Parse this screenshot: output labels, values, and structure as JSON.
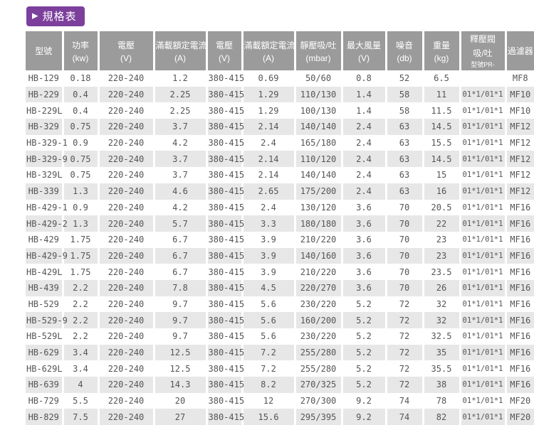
{
  "section_title": {
    "arrow_icon": "▶",
    "label": "規格表"
  },
  "colors": {
    "accent": "#7c3f9c",
    "header_bg": "#9b9b9b",
    "header_text": "#ffffff",
    "row_alt_bg": "#e7e7e7",
    "row_text": "#555555",
    "page_bg": "#ffffff"
  },
  "table": {
    "headers": [
      {
        "line1": "型號",
        "line2": "",
        "line3": ""
      },
      {
        "line1": "功率",
        "line2": "(kw)",
        "line3": ""
      },
      {
        "line1": "電壓",
        "line2": "(V)",
        "line3": ""
      },
      {
        "line1": "滿載額定電流",
        "line2": "(A)",
        "line3": ""
      },
      {
        "line1": "電壓",
        "line2": "(V)",
        "line3": ""
      },
      {
        "line1": "滿載額定電流",
        "line2": "(A)",
        "line3": ""
      },
      {
        "line1": "靜壓吸/吐",
        "line2": "(mbar)",
        "line3": ""
      },
      {
        "line1": "最大風量",
        "line2": "(V)",
        "line3": ""
      },
      {
        "line1": "噪音",
        "line2": "(db)",
        "line3": ""
      },
      {
        "line1": "重量",
        "line2": "(kg)",
        "line3": ""
      },
      {
        "line1": "釋壓閥",
        "line2": "吸/吐",
        "line3": "型號PR-"
      },
      {
        "line1": "過濾器",
        "line2": "",
        "line3": ""
      }
    ],
    "rows": [
      [
        "HB-129",
        "0.18",
        "220-240",
        "1.2",
        "380-415",
        "0.69",
        "50/60",
        "0.8",
        "52",
        "6.5",
        "",
        "MF8"
      ],
      [
        "HB-229",
        "0.4",
        "220-240",
        "2.25",
        "380-415",
        "1.29",
        "110/130",
        "1.4",
        "58",
        "11",
        "01*1/01*1",
        "MF10"
      ],
      [
        "HB-229L",
        "0.4",
        "220-240",
        "2.25",
        "380-415",
        "1.29",
        "100/130",
        "1.4",
        "58",
        "11.5",
        "01*1/01*1",
        "MF10"
      ],
      [
        "HB-329",
        "0.75",
        "220-240",
        "3.7",
        "380-415",
        "2.14",
        "140/140",
        "2.4",
        "63",
        "14.5",
        "01*1/01*1",
        "MF12"
      ],
      [
        "HB-329-1",
        "0.9",
        "220-240",
        "4.2",
        "380-415",
        "2.4",
        "165/180",
        "2.4",
        "63",
        "15.5",
        "01*1/01*1",
        "MF12"
      ],
      [
        "HB-329-9",
        "0.75",
        "220-240",
        "3.7",
        "380-415",
        "2.14",
        "110/120",
        "2.4",
        "63",
        "14.5",
        "01*1/01*1",
        "MF12"
      ],
      [
        "HB-329L",
        "0.75",
        "220-240",
        "3.7",
        "380-415",
        "2.14",
        "140/140",
        "2.4",
        "63",
        "15",
        "01*1/01*1",
        "MF12"
      ],
      [
        "HB-339",
        "1.3",
        "220-240",
        "4.6",
        "380-415",
        "2.65",
        "175/200",
        "2.4",
        "63",
        "16",
        "01*1/01*1",
        "MF12"
      ],
      [
        "HB-429-1",
        "0.9",
        "220-240",
        "4.2",
        "380-415",
        "2.4",
        "130/120",
        "3.6",
        "70",
        "20.5",
        "01*1/01*1",
        "MF16"
      ],
      [
        "HB-429-2",
        "1.3",
        "220-240",
        "5.7",
        "380-415",
        "3.3",
        "180/180",
        "3.6",
        "70",
        "22",
        "01*1/01*1",
        "MF16"
      ],
      [
        "HB-429",
        "1.75",
        "220-240",
        "6.7",
        "380-415",
        "3.9",
        "210/220",
        "3.6",
        "70",
        "23",
        "01*1/01*1",
        "MF16"
      ],
      [
        "HB-429-9",
        "1.75",
        "220-240",
        "6.7",
        "380-415",
        "3.9",
        "140/160",
        "3.6",
        "70",
        "23",
        "01*1/01*1",
        "MF16"
      ],
      [
        "HB-429L",
        "1.75",
        "220-240",
        "6.7",
        "380-415",
        "3.9",
        "210/220",
        "3.6",
        "70",
        "23.5",
        "01*1/01*1",
        "MF16"
      ],
      [
        "HB-439",
        "2.2",
        "220-240",
        "7.8",
        "380-415",
        "4.5",
        "220/270",
        "3.6",
        "70",
        "26",
        "01*1/01*1",
        "MF16"
      ],
      [
        "HB-529",
        "2.2",
        "220-240",
        "9.7",
        "380-415",
        "5.6",
        "230/220",
        "5.2",
        "72",
        "32",
        "01*1/01*1",
        "MF16"
      ],
      [
        "HB-529-9",
        "2.2",
        "220-240",
        "9.7",
        "380-415",
        "5.6",
        "160/200",
        "5.2",
        "72",
        "32",
        "01*1/01*1",
        "MF16"
      ],
      [
        "HB-529L",
        "2.2",
        "220-240",
        "9.7",
        "380-415",
        "5.6",
        "230/220",
        "5.2",
        "72",
        "32.5",
        "01*1/01*1",
        "MF16"
      ],
      [
        "HB-629",
        "3.4",
        "220-240",
        "12.5",
        "380-415",
        "7.2",
        "255/280",
        "5.2",
        "72",
        "35",
        "01*1/01*1",
        "MF16"
      ],
      [
        "HB-629L",
        "3.4",
        "220-240",
        "12.5",
        "380-415",
        "7.2",
        "255/280",
        "5.2",
        "72",
        "35.5",
        "01*1/01*1",
        "MF16"
      ],
      [
        "HB-639",
        "4",
        "220-240",
        "14.3",
        "380-415",
        "8.2",
        "270/325",
        "5.2",
        "72",
        "38",
        "01*1/01*1",
        "MF16"
      ],
      [
        "HB-729",
        "5.5",
        "220-240",
        "20",
        "380-415",
        "12",
        "270/300",
        "9.2",
        "74",
        "78",
        "01*1/01*1",
        "MF20"
      ],
      [
        "HB-829",
        "7.5",
        "220-240",
        "27",
        "380-415",
        "15.6",
        "295/395",
        "9.2",
        "74",
        "82",
        "01*1/01*1",
        "MF20"
      ]
    ]
  }
}
